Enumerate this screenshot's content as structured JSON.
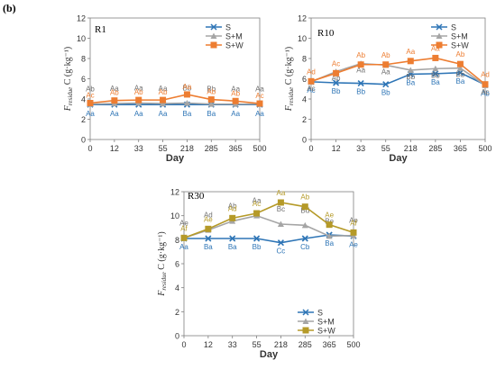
{
  "figure_label": "(b)",
  "chart_data": [
    {
      "type": "line",
      "panel": "R1",
      "x": [
        "0",
        "12",
        "33",
        "55",
        "218",
        "285",
        "365",
        "500"
      ],
      "xlabel": "Day",
      "ylabel": "F_residue C (g·kg⁻¹)",
      "ylim": [
        0,
        12
      ],
      "yticks": [
        0,
        2,
        4,
        6,
        8,
        10,
        12
      ],
      "legend": "top-right",
      "grid": false,
      "series": [
        {
          "name": "S",
          "marker": "x",
          "color": "#2e75b6",
          "values": [
            3.45,
            3.45,
            3.45,
            3.45,
            3.45,
            3.45,
            3.45,
            3.45
          ],
          "labels": [
            "Aa",
            "Aa",
            "Aa",
            "Aa",
            "Ba",
            "Ba",
            "Aa",
            "Aa"
          ]
        },
        {
          "name": "S+M",
          "marker": "triangle",
          "color": "#a5a5a5",
          "values": [
            3.5,
            3.55,
            3.6,
            3.55,
            3.6,
            3.5,
            3.5,
            3.5
          ],
          "labels": [
            "Ab",
            "Aa",
            "Aa",
            "Aa",
            "Bb",
            "Bb",
            "Aa",
            "Aa"
          ]
        },
        {
          "name": "S+W",
          "marker": "square",
          "color": "#ed7d31",
          "values": [
            3.6,
            3.85,
            3.9,
            3.9,
            4.45,
            3.95,
            3.8,
            3.55
          ],
          "labels": [
            "Ac",
            "Ab",
            "Ab",
            "Ab",
            "Aa",
            "Ab",
            "Ab",
            "Ac"
          ]
        }
      ]
    },
    {
      "type": "line",
      "panel": "R10",
      "x": [
        "0",
        "12",
        "33",
        "55",
        "218",
        "285",
        "365",
        "500"
      ],
      "xlabel": "Day",
      "ylabel": "F_residue C (g·kg⁻¹)",
      "ylim": [
        0,
        12
      ],
      "yticks": [
        0,
        2,
        4,
        6,
        8,
        10,
        12
      ],
      "legend": "top-right",
      "grid": false,
      "series": [
        {
          "name": "S",
          "marker": "x",
          "color": "#2e75b6",
          "values": [
            5.7,
            5.6,
            5.55,
            5.45,
            6.45,
            6.5,
            6.6,
            5.4
          ],
          "labels": [
            "Ac",
            "Bb",
            "Bb",
            "Bb",
            "Ba",
            "Ba",
            "Ba",
            "Ab"
          ]
        },
        {
          "name": "S+M",
          "marker": "triangle",
          "color": "#a5a5a5",
          "values": [
            5.7,
            6.7,
            7.5,
            7.35,
            6.85,
            7.0,
            7.05,
            5.35
          ],
          "labels": [
            "Ac",
            "Ab",
            "Aa",
            "Aa",
            "Bb",
            "Bb",
            "Bb",
            "Ac"
          ]
        },
        {
          "name": "S+W",
          "marker": "square",
          "color": "#ed7d31",
          "values": [
            5.75,
            6.55,
            7.4,
            7.4,
            7.75,
            8.05,
            7.45,
            5.45
          ],
          "labels": [
            "Ad",
            "Ac",
            "Ab",
            "Ab",
            "Aa",
            "Aa",
            "Ab",
            "Ad"
          ]
        }
      ]
    },
    {
      "type": "line",
      "panel": "R30",
      "x": [
        "0",
        "12",
        "33",
        "55",
        "218",
        "285",
        "365",
        "500"
      ],
      "xlabel": "Day",
      "ylabel": "F_residue C (g·kg⁻¹)",
      "ylim": [
        0,
        12
      ],
      "yticks": [
        0,
        2,
        4,
        6,
        8,
        10,
        12
      ],
      "legend": "bottom-right",
      "grid": false,
      "series": [
        {
          "name": "S",
          "marker": "x",
          "color": "#2e75b6",
          "values": [
            8.1,
            8.1,
            8.1,
            8.1,
            7.75,
            8.1,
            8.4,
            8.3
          ],
          "labels": [
            "Aa",
            "Ba",
            "Ba",
            "Bb",
            "Cc",
            "Cb",
            "Ba",
            "Ae"
          ]
        },
        {
          "name": "S+M",
          "marker": "triangle",
          "color": "#a5a5a5",
          "values": [
            8.15,
            8.8,
            9.55,
            10.0,
            9.3,
            9.2,
            8.3,
            8.35
          ],
          "labels": [
            "Ae",
            "Ad",
            "Ab",
            "Aa",
            "Bc",
            "Bd",
            "Be",
            "Ae"
          ]
        },
        {
          "name": "S+W",
          "marker": "square",
          "color": "#b59a28",
          "values": [
            8.15,
            8.9,
            9.8,
            10.2,
            11.1,
            10.75,
            9.25,
            8.6
          ],
          "labels": [
            "Af",
            "Ae",
            "Ad",
            "Ac",
            "Aa",
            "Ab",
            "Ae",
            "Af"
          ]
        }
      ]
    }
  ]
}
